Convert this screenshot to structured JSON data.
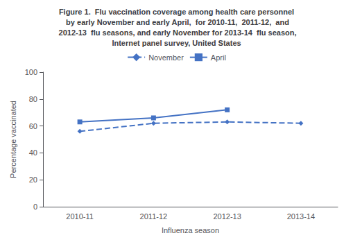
{
  "chart_data": {
    "type": "line",
    "title": "Figure 1.  Flu vaccination coverage among health care personnel\n by early November and early April,  for 2010-11,  2011-12,  and\n 2012-13  flu seasons, and early November for 2013-14  flu season,\nInternet panel survey, United States",
    "xlabel": "Influenza season",
    "ylabel": "Percentage vaccinated",
    "categories": [
      "2010-11",
      "2011-12",
      "2012-13",
      "2013-14"
    ],
    "series": [
      {
        "name": "November",
        "color": "#4472C4",
        "values": [
          56,
          62,
          63,
          62
        ],
        "marker": "diamond",
        "line_style": "dashed"
      },
      {
        "name": "April",
        "color": "#4472C4",
        "values": [
          63,
          66,
          72,
          null
        ],
        "marker": "square",
        "line_style": "solid"
      }
    ],
    "ylim": [
      0,
      100
    ],
    "yticks": [
      0,
      20,
      40,
      60,
      80,
      100
    ],
    "grid": false,
    "legend": "top"
  }
}
